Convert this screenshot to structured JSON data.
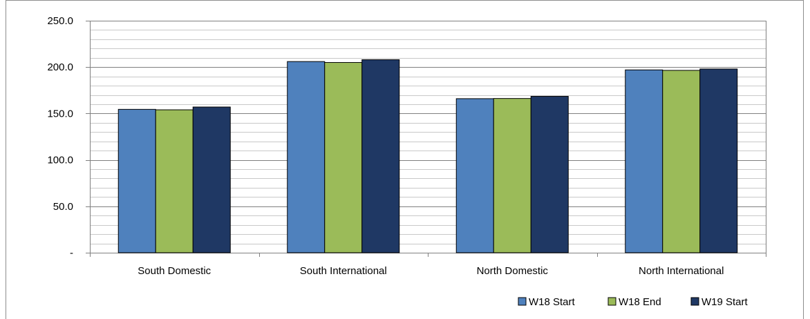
{
  "chart_data": {
    "type": "bar",
    "categories": [
      "South Domestic",
      "South International",
      "North Domestic",
      "North International"
    ],
    "series": [
      {
        "name": "W18 Start",
        "values": [
          154.5,
          206.0,
          166.0,
          197.0
        ],
        "color": "#4f81bd"
      },
      {
        "name": "W18 End",
        "values": [
          154.0,
          205.0,
          166.2,
          196.5
        ],
        "color": "#9bbb59"
      },
      {
        "name": "W19 Start",
        "values": [
          157.0,
          208.0,
          168.5,
          198.0
        ],
        "color": "#1f3864"
      }
    ],
    "ylim": [
      0,
      250
    ],
    "ytick_values": [
      0,
      50,
      100,
      150,
      200,
      250
    ],
    "ytick_labels": [
      "-",
      "50.0",
      "100.0",
      "150.0",
      "200.0",
      "250.0"
    ],
    "minor_grid_step": 10,
    "grid": true,
    "legend_position": "bottom-right",
    "title": ""
  }
}
